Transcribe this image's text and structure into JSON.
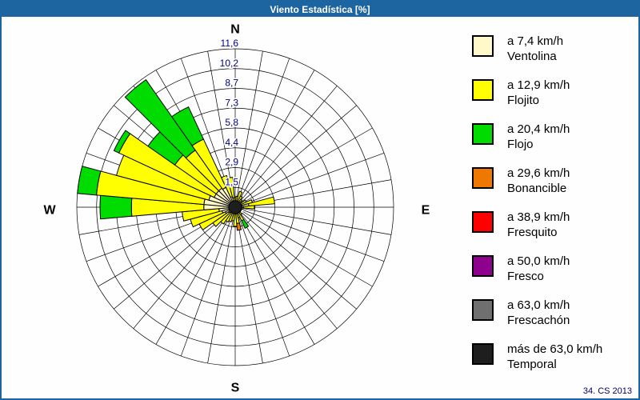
{
  "window": {
    "title": "Viento Estadística [%]",
    "footer": "34. CS 2013",
    "titlebar_color": "#1C65A1"
  },
  "legend": {
    "items": [
      {
        "speed": "a 7,4 km/h",
        "name": "Ventolina",
        "color": "#FFF8C8"
      },
      {
        "speed": "a 12,9 km/h",
        "name": "Flojito",
        "color": "#FFFF00"
      },
      {
        "speed": "a 20,4 km/h",
        "name": "Flojo",
        "color": "#00DC00"
      },
      {
        "speed": "a 29,6 km/h",
        "name": "Bonancible",
        "color": "#EE7800"
      },
      {
        "speed": "a 38,9 km/h",
        "name": "Fresquito",
        "color": "#FF0000"
      },
      {
        "speed": "a 50,0 km/h",
        "name": "Fresco",
        "color": "#8E008E"
      },
      {
        "speed": "a 63,0 km/h",
        "name": "Frescachón",
        "color": "#6F6F6F"
      },
      {
        "speed": "más de 63,0 km/h",
        "name": "Temporal",
        "color": "#1E1E1E"
      }
    ]
  },
  "chart_data": {
    "type": "wind-rose",
    "title": "Viento Estadística [%]",
    "units": "%",
    "compass_labels": {
      "n": "N",
      "e": "E",
      "s": "S",
      "w": "W"
    },
    "radial_ticks": [
      "1,5",
      "2,9",
      "4,4",
      "5,8",
      "7,3",
      "8,7",
      "10,2",
      "11,6"
    ],
    "rmax": 11.6,
    "ring_step": 1.45,
    "rings": 8,
    "sectors": 36,
    "sector_width_deg": 10,
    "grid": {
      "spokes_every_deg": 10,
      "line_color": "#000000"
    },
    "directions_deg": [
      0,
      10,
      20,
      30,
      40,
      50,
      60,
      70,
      80,
      90,
      100,
      110,
      120,
      130,
      140,
      150,
      160,
      170,
      180,
      190,
      200,
      210,
      220,
      230,
      240,
      250,
      260,
      270,
      280,
      290,
      300,
      310,
      320,
      330,
      340,
      350
    ],
    "series": [
      {
        "name": "Ventolina",
        "label": "a 7,4 km/h",
        "color": "#FFF8C8",
        "values": [
          0.3,
          0.3,
          0.4,
          0.3,
          0.3,
          0.2,
          0.3,
          0.5,
          1.0,
          0.6,
          0.3,
          0.2,
          0.2,
          0.2,
          0.3,
          0.4,
          0.3,
          0.4,
          0.5,
          0.4,
          0.4,
          0.4,
          0.5,
          0.6,
          0.8,
          1.0,
          1.2,
          2.3,
          2.3,
          2.0,
          1.7,
          1.7,
          1.7,
          1.6,
          0.8,
          0.7
        ]
      },
      {
        "name": "Flojito",
        "label": "a 12,9 km/h",
        "color": "#FFFF00",
        "values": [
          0.4,
          0.5,
          0.8,
          0.6,
          0.4,
          0.4,
          0.6,
          0.8,
          1.9,
          0.8,
          0.3,
          0.3,
          0.2,
          0.3,
          0.4,
          0.7,
          0.5,
          0.8,
          0.9,
          0.6,
          0.7,
          0.8,
          1.0,
          1.4,
          2.1,
          2.4,
          2.7,
          5.3,
          7.9,
          7.0,
          7.7,
          3.7,
          3.4,
          3.9,
          1.6,
          1.5
        ]
      },
      {
        "name": "Flojo",
        "label": "a 20,4 km/h",
        "color": "#00DC00",
        "values": [
          0,
          0,
          0,
          0,
          0,
          0,
          0,
          0,
          0,
          0,
          0,
          0,
          0,
          0,
          0,
          0.6,
          0,
          0,
          0,
          0,
          0,
          0,
          0,
          0,
          0,
          0,
          0,
          2.3,
          1.4,
          0,
          0.4,
          2.4,
          6.3,
          2.6,
          0,
          0
        ]
      },
      {
        "name": "Bonancible",
        "label": "a 29,6 km/h",
        "color": "#EE7800",
        "values": [
          0,
          0,
          0,
          0,
          0,
          0,
          0,
          0,
          0,
          0,
          0,
          0,
          0,
          0,
          0,
          0,
          0,
          0.5,
          0,
          0,
          0,
          0,
          0,
          0,
          0,
          0,
          0,
          0,
          0,
          0,
          0,
          0,
          0,
          0,
          0,
          0
        ]
      },
      {
        "name": "Fresquito",
        "label": "a 38,9 km/h",
        "color": "#FF0000",
        "values": [
          0,
          0,
          0,
          0,
          0,
          0,
          0,
          0,
          0,
          0,
          0,
          0,
          0,
          0,
          0,
          0,
          0,
          0,
          0,
          0,
          0,
          0,
          0,
          0,
          0,
          0,
          0,
          0,
          0,
          0,
          0,
          0,
          0,
          0,
          0,
          0
        ]
      },
      {
        "name": "Fresco",
        "label": "a 50,0 km/h",
        "color": "#8E008E",
        "values": [
          0,
          0,
          0,
          0,
          0,
          0,
          0,
          0,
          0,
          0,
          0,
          0,
          0,
          0,
          0,
          0,
          0,
          0,
          0,
          0,
          0,
          0,
          0,
          0,
          0,
          0,
          0,
          0,
          0,
          0,
          0,
          0,
          0,
          0,
          0,
          0
        ]
      },
      {
        "name": "Frescachón",
        "label": "a 63,0 km/h",
        "color": "#6F6F6F",
        "values": [
          0,
          0,
          0,
          0,
          0,
          0,
          0,
          0,
          0,
          0,
          0,
          0,
          0,
          0,
          0,
          0,
          0,
          0,
          0,
          0,
          0,
          0,
          0,
          0,
          0,
          0,
          0,
          0,
          0,
          0,
          0,
          0,
          0,
          0,
          0,
          0
        ]
      },
      {
        "name": "Temporal",
        "label": "más de 63,0 km/h",
        "color": "#1E1E1E",
        "values": [
          0,
          0,
          0,
          0,
          0,
          0,
          0,
          0,
          0,
          0,
          0,
          0,
          0,
          0,
          0,
          0,
          0,
          0,
          0,
          0,
          0,
          0,
          0,
          0,
          0,
          0,
          0,
          0,
          0,
          0,
          0,
          0,
          0,
          0,
          0,
          0
        ]
      }
    ],
    "center_dot": {
      "color": "#1E1E1E",
      "radius_px": 8
    },
    "tick_color": "#000080",
    "legend_position": "right"
  }
}
